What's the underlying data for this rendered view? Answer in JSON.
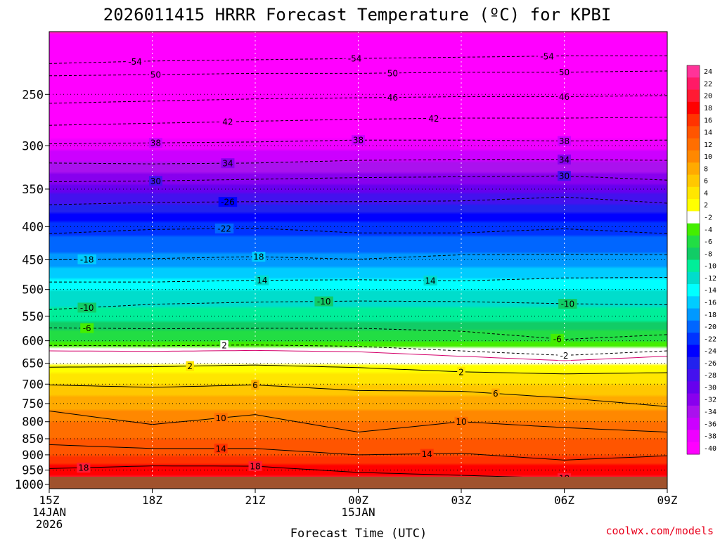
{
  "chart_data": {
    "type": "heatmap",
    "title": "2026011415 HRRR Forecast Temperature (ºC) for KPBI",
    "xlabel": "Forecast Time (UTC)",
    "ylabel": "",
    "credit": "coolwx.com/models",
    "x_ticks": [
      {
        "hour": 0,
        "lines": [
          "15Z",
          "14JAN",
          "2026"
        ]
      },
      {
        "hour": 3,
        "lines": [
          "18Z"
        ]
      },
      {
        "hour": 6,
        "lines": [
          "21Z"
        ]
      },
      {
        "hour": 9,
        "lines": [
          "00Z",
          "15JAN"
        ]
      },
      {
        "hour": 12,
        "lines": [
          "03Z"
        ]
      },
      {
        "hour": 15,
        "lines": [
          "06Z"
        ]
      },
      {
        "hour": 18,
        "lines": [
          "09Z"
        ]
      }
    ],
    "xlim": [
      0,
      18
    ],
    "y_ticks": [
      250,
      300,
      350,
      400,
      450,
      500,
      550,
      600,
      650,
      700,
      750,
      800,
      850,
      900,
      950,
      1000
    ],
    "ylim_hpa": [
      1015,
      200
    ],
    "colorbar": {
      "levels": [
        24,
        22,
        20,
        18,
        16,
        14,
        12,
        10,
        8,
        6,
        4,
        2,
        -2,
        -4,
        -6,
        -8,
        -10,
        -12,
        -14,
        -16,
        -18,
        -20,
        -22,
        -24,
        -26,
        -28,
        -30,
        -32,
        -34,
        -36,
        -38,
        -40
      ],
      "colors": [
        "#ff3399",
        "#ff1a66",
        "#ff1a33",
        "#ff0000",
        "#ff3300",
        "#ff5500",
        "#ff6e00",
        "#ff8800",
        "#ffaa00",
        "#ffc800",
        "#ffe600",
        "#ffff00",
        "#ffffff",
        "#44ee00",
        "#22dd44",
        "#11cc66",
        "#00ee99",
        "#00ddcc",
        "#00ffff",
        "#00ccff",
        "#0099ff",
        "#0066ff",
        "#0033ff",
        "#0000ff",
        "#2222ee",
        "#4411ee",
        "#6600ee",
        "#8800ee",
        "#aa11ee",
        "#cc00ff",
        "#ee00ff",
        "#ff00ff"
      ]
    },
    "temperature_profile": [
      {
        "p": 200,
        "t": -57
      },
      {
        "p": 250,
        "t": -46
      },
      {
        "p": 300,
        "t": -38
      },
      {
        "p": 350,
        "t": -30
      },
      {
        "p": 400,
        "t": -22
      },
      {
        "p": 450,
        "t": -18
      },
      {
        "p": 500,
        "t": -13
      },
      {
        "p": 550,
        "t": -10
      },
      {
        "p": 600,
        "t": -5
      },
      {
        "p": 650,
        "t": 1
      },
      {
        "p": 700,
        "t": 5
      },
      {
        "p": 750,
        "t": 8
      },
      {
        "p": 800,
        "t": 11
      },
      {
        "p": 850,
        "t": 13
      },
      {
        "p": 900,
        "t": 15
      },
      {
        "p": 950,
        "t": 18
      },
      {
        "p": 1000,
        "t": 21
      },
      {
        "p": 1015,
        "t": 23
      }
    ],
    "contours": [
      {
        "value": -54,
        "p": [
          224,
          222,
          221,
          220,
          219,
          218,
          218
        ],
        "labels": [
          {
            "hour": 2.5,
            "text": "-54"
          },
          {
            "hour": 8.9,
            "text": "-54"
          },
          {
            "hour": 14.5,
            "text": "-54"
          }
        ]
      },
      {
        "value": -50,
        "p": [
          234,
          233,
          232,
          232,
          231,
          231,
          230
        ],
        "labels": [
          {
            "hour": 3.1,
            "text": "50"
          },
          {
            "hour": 10.0,
            "text": "50"
          },
          {
            "hour": 15.0,
            "text": "50"
          }
        ]
      },
      {
        "value": -46,
        "p": [
          258,
          256,
          254,
          253,
          252,
          252,
          251
        ],
        "labels": [
          {
            "hour": 10.0,
            "text": "46"
          },
          {
            "hour": 15.0,
            "text": "46"
          }
        ]
      },
      {
        "value": -42,
        "p": [
          279,
          277,
          275,
          273,
          272,
          272,
          271
        ],
        "labels": [
          {
            "hour": 5.2,
            "text": "42"
          },
          {
            "hour": 11.2,
            "text": "42"
          }
        ]
      },
      {
        "value": -38,
        "p": [
          298,
          297,
          296,
          294,
          294,
          295,
          294
        ],
        "labels": [
          {
            "hour": 3.1,
            "text": "38"
          },
          {
            "hour": 9.0,
            "text": "38"
          },
          {
            "hour": 15.0,
            "text": "38"
          }
        ]
      },
      {
        "value": -34,
        "p": [
          319,
          320,
          319,
          316,
          315,
          315,
          316
        ],
        "labels": [
          {
            "hour": 5.2,
            "text": "34"
          },
          {
            "hour": 15.0,
            "text": "34"
          }
        ]
      },
      {
        "value": -30,
        "p": [
          341,
          340,
          338,
          336,
          335,
          334,
          339
        ],
        "labels": [
          {
            "hour": 3.1,
            "text": "30"
          },
          {
            "hour": 15.0,
            "text": "30"
          }
        ]
      },
      {
        "value": -26,
        "p": [
          370,
          367,
          366,
          366,
          365,
          360,
          368
        ],
        "labels": [
          {
            "hour": 5.2,
            "text": "-26"
          }
        ]
      },
      {
        "value": -22,
        "p": [
          410,
          404,
          402,
          409,
          409,
          403,
          410
        ],
        "labels": [
          {
            "hour": 5.1,
            "text": "-22"
          }
        ]
      },
      {
        "value": -18,
        "p": [
          450,
          448,
          445,
          449,
          442,
          441,
          442
        ],
        "labels": [
          {
            "hour": 1.1,
            "text": "-18"
          },
          {
            "hour": 6.1,
            "text": "18"
          }
        ]
      },
      {
        "value": -14,
        "p": [
          487,
          487,
          484,
          483,
          485,
          480,
          479
        ],
        "labels": [
          {
            "hour": 6.2,
            "text": "14"
          },
          {
            "hour": 11.1,
            "text": "14"
          }
        ]
      },
      {
        "value": -10,
        "p": [
          537,
          527,
          523,
          521,
          522,
          526,
          528
        ],
        "labels": [
          {
            "hour": 1.1,
            "text": "-10"
          },
          {
            "hour": 8.0,
            "text": "-10"
          },
          {
            "hour": 15.1,
            "text": "-10"
          }
        ]
      },
      {
        "value": -6,
        "p": [
          573,
          575,
          574,
          574,
          580,
          597,
          587
        ],
        "labels": [
          {
            "hour": 1.1,
            "text": "-6"
          },
          {
            "hour": 14.8,
            "text": "-6"
          }
        ]
      },
      {
        "value": -2,
        "p": [
          610,
          611,
          609,
          612,
          622,
          632,
          622
        ],
        "labels": [
          {
            "hour": 5.1,
            "text": "2"
          },
          {
            "hour": 15.0,
            "text": "-2"
          }
        ]
      },
      {
        "value": 2,
        "p": [
          659,
          658,
          654,
          660,
          670,
          675,
          672
        ],
        "labels": [
          {
            "hour": 4.1,
            "text": "2"
          },
          {
            "hour": 12.0,
            "text": "2"
          }
        ]
      },
      {
        "value": 6,
        "p": [
          702,
          708,
          702,
          716,
          718,
          735,
          758
        ],
        "labels": [
          {
            "hour": 6.0,
            "text": "6"
          },
          {
            "hour": 13.0,
            "text": "6"
          }
        ]
      },
      {
        "value": 10,
        "p": [
          770,
          808,
          780,
          830,
          800,
          817,
          830
        ],
        "labels": [
          {
            "hour": 5.0,
            "text": "10"
          },
          {
            "hour": 12.0,
            "text": "10"
          }
        ]
      },
      {
        "value": 14,
        "p": [
          868,
          880,
          880,
          900,
          895,
          917,
          903
        ],
        "labels": [
          {
            "hour": 5.0,
            "text": "14"
          },
          {
            "hour": 11.0,
            "text": "14"
          }
        ]
      },
      {
        "value": 18,
        "p": [
          945,
          936,
          937,
          958,
          968,
          978,
          980
        ],
        "labels": [
          {
            "hour": 1.0,
            "text": "18"
          },
          {
            "hour": 6.0,
            "text": "18"
          },
          {
            "hour": 15.0,
            "text": "18"
          }
        ]
      }
    ],
    "ground_level_hpa": 1010
  }
}
